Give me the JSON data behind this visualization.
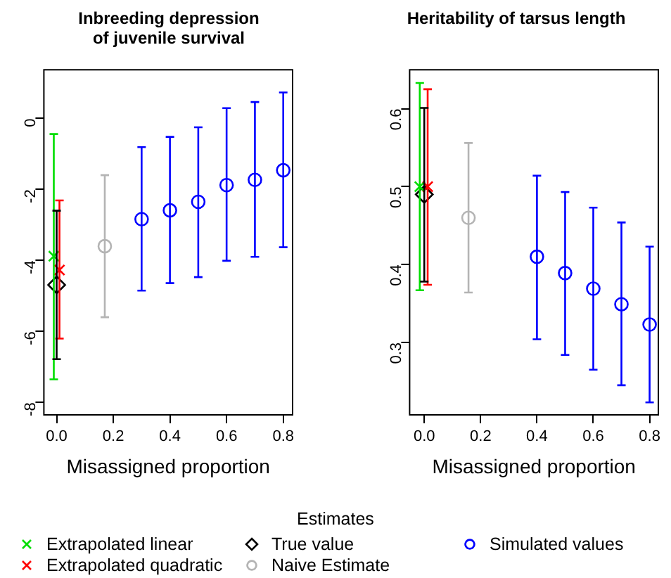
{
  "chart_data": [
    {
      "type": "scatter",
      "title": "Inbreeding depression\nof juvenile survival",
      "xlabel": "Misassigned proportion",
      "legend": "bottom",
      "legend_title": "Estimates",
      "grid": false,
      "xlim": [
        -0.045,
        0.833
      ],
      "ylim": [
        -8.35,
        1.37
      ],
      "xticks": [
        {
          "value": 0,
          "label": "0.0"
        },
        {
          "value": 0.2,
          "label": "0.2"
        },
        {
          "value": 0.4,
          "label": "0.4"
        },
        {
          "value": 0.6,
          "label": "0.6"
        },
        {
          "value": 0.8,
          "label": "0.8"
        }
      ],
      "yticks": [
        -8,
        -6,
        -4,
        -2,
        0
      ],
      "series": [
        {
          "name": "Extrapolated linear",
          "color": "#00dd00",
          "marker": "cross",
          "x": [
            -0.01
          ],
          "values": [
            -3.88
          ],
          "errors": [
            [
              -7.35,
              -0.44
            ]
          ]
        },
        {
          "name": "Extrapolated quadratic",
          "color": "#ff0000",
          "marker": "cross",
          "x": [
            0.01
          ],
          "values": [
            -4.27
          ],
          "errors": [
            [
              -6.2,
              -2.31
            ]
          ]
        },
        {
          "name": "True value",
          "color": "#000000",
          "marker": "diamond",
          "x": [
            0
          ],
          "values": [
            -4.69
          ],
          "errors": [
            [
              -6.78,
              -2.6
            ]
          ]
        },
        {
          "name": "Naive Estimate",
          "color": "#b4b4b4",
          "marker": "circle",
          "x": [
            0.17
          ],
          "values": [
            -3.6
          ],
          "errors": [
            [
              -5.6,
              -1.6
            ]
          ]
        },
        {
          "name": "Simulated values",
          "color": "#0000ff",
          "marker": "circle",
          "x": [
            0.3,
            0.4,
            0.5,
            0.6,
            0.7,
            0.8
          ],
          "values": [
            -2.84,
            -2.59,
            -2.35,
            -1.88,
            -1.73,
            -1.46
          ],
          "errors": [
            [
              -4.85,
              -0.81
            ],
            [
              -4.64,
              -0.52
            ],
            [
              -4.47,
              -0.25
            ],
            [
              -4.01,
              0.29
            ],
            [
              -3.9,
              0.46
            ],
            [
              -3.63,
              0.73
            ]
          ]
        }
      ]
    },
    {
      "type": "scatter",
      "title": "Heritability of tarsus length",
      "xlabel": "Misassigned proportion",
      "grid": false,
      "xlim": [
        -0.052,
        0.831
      ],
      "ylim": [
        0.207,
        0.65
      ],
      "xticks": [
        {
          "value": 0,
          "label": "0.0"
        },
        {
          "value": 0.2,
          "label": "0.2"
        },
        {
          "value": 0.4,
          "label": "0.4"
        },
        {
          "value": 0.6,
          "label": "0.6"
        },
        {
          "value": 0.8,
          "label": "0.8"
        }
      ],
      "yticks": [
        0.3,
        0.4,
        0.5,
        0.6
      ],
      "series": [
        {
          "color": "#00dd00",
          "marker": "cross",
          "x": [
            -0.016
          ],
          "values": [
            0.5
          ],
          "errors": [
            [
              0.367,
              0.633
            ]
          ]
        },
        {
          "color": "#ff0000",
          "marker": "cross",
          "x": [
            0.012
          ],
          "values": [
            0.5
          ],
          "errors": [
            [
              0.374,
              0.625
            ]
          ]
        },
        {
          "color": "#000000",
          "marker": "diamond",
          "x": [
            0
          ],
          "values": [
            0.49
          ],
          "errors": [
            [
              0.378,
              0.601
            ]
          ]
        },
        {
          "color": "#b4b4b4",
          "marker": "circle",
          "x": [
            0.157
          ],
          "values": [
            0.46
          ],
          "errors": [
            [
              0.364,
              0.556
            ]
          ]
        },
        {
          "color": "#0000ff",
          "marker": "circle",
          "x": [
            0.4,
            0.5,
            0.6,
            0.7,
            0.8
          ],
          "values": [
            0.41,
            0.389,
            0.369,
            0.349,
            0.323
          ],
          "errors": [
            [
              0.304,
              0.514
            ],
            [
              0.284,
              0.493
            ],
            [
              0.265,
              0.473
            ],
            [
              0.245,
              0.454
            ],
            [
              0.223,
              0.423
            ]
          ]
        }
      ]
    }
  ]
}
